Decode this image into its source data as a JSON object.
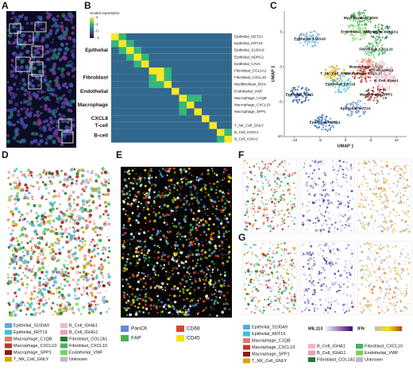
{
  "panel_labels": [
    "A",
    "B",
    "C",
    "D",
    "E",
    "F",
    "G"
  ],
  "heatmap": {
    "legend_title": "Scaled expression",
    "legend_ticks": [
      2,
      1,
      0,
      -1
    ],
    "groups": [
      "Epithelial",
      "Fibroblast",
      "Endothelial",
      "Macrophage",
      "CXCL8",
      "T-cell",
      "B-cell"
    ],
    "rows": [
      "Epithelial_MZT2A",
      "Epithelial_KRT19",
      "Epithelial_S100A9",
      "Epithelial_NDRG1",
      "Epithelial_CAV1",
      "Fibroblast_COL1A1",
      "Fibroblast_CXCL10",
      "Myofibroblast_BGN",
      "Endothelial_VWF",
      "Macrophage_C1QB",
      "Macrophage_CXCL10",
      "Macrophage_SPP1",
      null,
      "T_NK_Cell_GNLY",
      "B_Cell_IGHG1",
      "B_Cell_IGHA1"
    ],
    "values": [
      [
        2,
        1,
        0,
        0,
        0,
        0,
        0,
        0,
        0,
        0,
        0,
        0,
        0,
        0,
        0,
        0
      ],
      [
        1,
        2,
        1,
        0,
        0,
        0,
        0,
        0,
        0,
        0,
        0,
        0,
        0,
        0,
        0,
        0
      ],
      [
        0,
        1,
        2,
        1,
        0,
        0,
        0,
        0,
        0,
        0,
        0,
        0,
        0,
        0,
        0,
        0
      ],
      [
        0,
        0,
        1,
        2,
        1,
        0,
        0,
        0,
        0,
        0,
        0,
        0,
        0,
        0,
        0,
        0
      ],
      [
        0,
        0,
        0,
        1,
        2,
        0,
        0,
        0,
        0,
        0,
        0,
        0,
        0,
        0,
        0,
        0
      ],
      [
        0,
        0,
        0,
        0,
        0,
        2,
        2,
        1,
        0,
        0,
        0,
        0,
        0,
        0,
        0,
        0
      ],
      [
        0,
        0,
        0,
        0,
        0,
        1,
        2,
        1,
        0,
        0,
        0,
        0,
        0,
        0,
        0,
        0
      ],
      [
        0,
        0,
        0,
        0,
        0,
        1,
        1,
        2,
        0,
        0,
        0,
        0,
        0,
        0,
        0,
        0
      ],
      [
        0,
        0,
        0,
        0,
        0,
        0,
        0,
        0,
        2,
        0,
        0,
        0,
        0,
        0,
        0,
        0
      ],
      [
        0,
        0,
        0,
        0,
        0,
        0,
        0,
        0,
        0,
        2,
        1,
        1,
        0,
        0,
        0,
        0
      ],
      [
        0,
        0,
        0,
        0,
        0,
        0,
        0,
        0,
        0,
        1,
        2,
        0,
        0,
        0,
        0,
        0
      ],
      [
        0,
        0,
        0,
        0,
        0,
        0,
        0,
        0,
        0,
        1,
        0,
        2,
        0,
        0,
        0,
        0
      ],
      [
        0,
        0,
        0,
        0,
        0,
        0,
        0,
        0,
        0,
        0,
        0,
        0,
        2,
        0,
        0,
        0
      ],
      [
        0,
        0,
        0,
        0,
        0,
        0,
        0,
        0,
        0,
        0,
        0,
        0,
        0,
        2,
        0,
        0
      ],
      [
        0,
        0,
        0,
        0,
        0,
        0,
        0,
        0,
        0,
        0,
        0,
        0,
        0,
        0,
        2,
        1
      ],
      [
        0,
        0,
        0,
        0,
        0,
        0,
        0,
        0,
        0,
        0,
        0,
        0,
        0,
        0,
        1,
        2
      ]
    ]
  },
  "umap": {
    "type": "scatter",
    "xlabel": "UMAP 1",
    "ylabel": "UMAP 2",
    "xlim": [
      -12,
      12
    ],
    "ylim": [
      -10,
      8
    ],
    "xticks": [
      -10,
      -5,
      0,
      5,
      10
    ],
    "yticks": [
      -10,
      -5,
      0,
      5
    ],
    "clusters": [
      {
        "name": "Epithelial_S100A9",
        "color": "#5aa8e6",
        "x": -7,
        "y": 4
      },
      {
        "name": "Myofibroblast_BGN",
        "color": "#2e9e3e",
        "x": 3,
        "y": 7
      },
      {
        "name": "Endothelial_VWF",
        "color": "#7fcf5a",
        "x": 2,
        "y": 5
      },
      {
        "name": "Fibroblast_COL1A1",
        "color": "#1f7a2e",
        "x": 7,
        "y": 5
      },
      {
        "name": "Fibroblast_CXCL10",
        "color": "#45b35c",
        "x": 6,
        "y": 2.5
      },
      {
        "name": "Macrophage_C1QB",
        "color": "#e07a5f",
        "x": 4,
        "y": 0
      },
      {
        "name": "Macrophage_CXCL10",
        "color": "#c0392b",
        "x": 3.5,
        "y": -1
      },
      {
        "name": "B_Cell_IGHG1",
        "color": "#e8a0b4",
        "x": 7,
        "y": -0.5
      },
      {
        "name": "T_NK_Cell_GNLY",
        "color": "#d9a400",
        "x": -2,
        "y": -1
      },
      {
        "name": "B_Cell_IGHA1",
        "color": "#f4b6c2",
        "x": 8,
        "y": -2
      },
      {
        "name": "Epithelial_KRT19",
        "color": "#3ec1d3",
        "x": -1,
        "y": -2.5
      },
      {
        "name": "Macrophage_SPP1",
        "color": "#8e1b1b",
        "x": 6,
        "y": -4
      },
      {
        "name": "Epithelial_CAV1",
        "color": "#1f4e9e",
        "x": -9,
        "y": -4
      },
      {
        "name": "Epithelial_MZT2A",
        "color": "#6a8fd6",
        "x": 2,
        "y": -6
      },
      {
        "name": "Epithelial_NDRG1",
        "color": "#2b6cc4",
        "x": -4,
        "y": -8
      }
    ]
  },
  "cell_legend": [
    {
      "name": "Epithelial_S100A9",
      "color": "#5aa8e6"
    },
    {
      "name": "B_Cell_IGHA1",
      "color": "#f4b6c2"
    },
    {
      "name": "Epithelial_KRT19",
      "color": "#3ec1d3"
    },
    {
      "name": "B_Cell_IGHG1",
      "color": "#e8a0b4"
    },
    {
      "name": "Macrophage_C1QB",
      "color": "#e07a5f"
    },
    {
      "name": "Fibroblast_COL1A1",
      "color": "#1f7a2e"
    },
    {
      "name": "Macrophage_CXCL10",
      "color": "#c0392b"
    },
    {
      "name": "Fibroblast_CXCL10",
      "color": "#45b35c"
    },
    {
      "name": "Macrophage_SPP1",
      "color": "#8e1b1b"
    },
    {
      "name": "Endothelial_VWF",
      "color": "#7fcf5a"
    },
    {
      "name": "T_NK_Cell_GNLY",
      "color": "#d9a400"
    },
    {
      "name": "Unknown",
      "color": "#bbbbbb"
    }
  ],
  "marker_legend": [
    {
      "name": "PanCK",
      "color": "#5b8fd8"
    },
    {
      "name": "CD68",
      "color": "#e0402a"
    },
    {
      "name": "FAP",
      "color": "#4caf50"
    },
    {
      "name": "CD45",
      "color": "#f4e200"
    }
  ],
  "fg_legend": [
    {
      "name": "Epithelial_S100A9",
      "color": "#5aa8e6"
    },
    {
      "name": "Epithelial_KRT19",
      "color": "#3ec1d3"
    },
    {
      "name": "Macrophage_C1QB",
      "color": "#e07a5f"
    },
    {
      "name": "Macrophage_CXCL10",
      "color": "#c0392b"
    },
    {
      "name": "Macrophage_SPP1",
      "color": "#8e1b1b"
    },
    {
      "name": "T_NK_Cell_GNLY",
      "color": "#d9a400"
    },
    {
      "name": "B_Cell_IGHA1",
      "color": "#f4b6c2"
    },
    {
      "name": "B_Cell_IGHG1",
      "color": "#e8a0b4"
    },
    {
      "name": "Fibroblast_COL1A1",
      "color": "#1f7a2e"
    },
    {
      "name": "Fibroblast_CXCL10",
      "color": "#45b35c"
    },
    {
      "name": "Endothelial_VWF",
      "color": "#7fcf5a"
    },
    {
      "name": "Unknown",
      "color": "#bbbbbb"
    }
  ],
  "colorbars": [
    "MIL113",
    "IFN"
  ]
}
